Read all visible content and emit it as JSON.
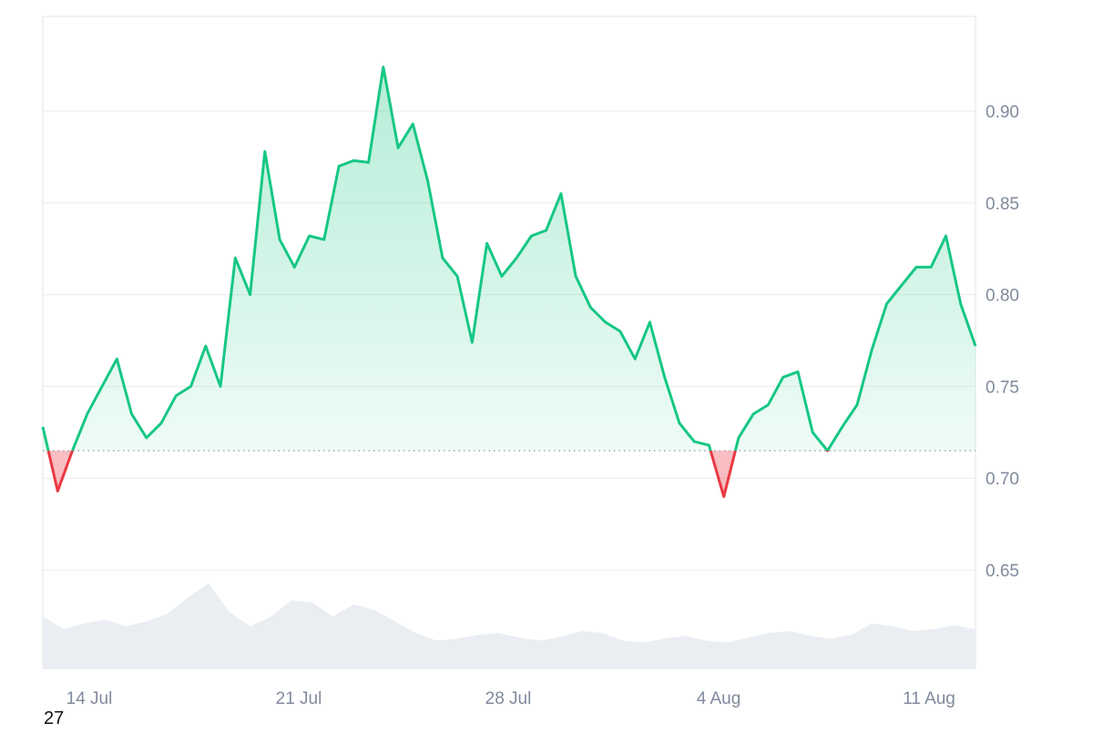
{
  "page_label": "27",
  "chart_data": {
    "type": "line",
    "x_axis": {
      "ticks": [
        "14 Jul",
        "21 Jul",
        "28 Jul",
        "4 Aug",
        "11 Aug"
      ]
    },
    "y_axis": {
      "ticks": [
        "0.65",
        "0.70",
        "0.75",
        "0.80",
        "0.85",
        "0.90"
      ],
      "range": [
        0.6,
        0.95
      ]
    },
    "baseline": 0.715,
    "grid": true,
    "colors": {
      "up": "#16c784",
      "down": "#ea3943",
      "volume": "#eaeef2",
      "grid": "#ececec",
      "axis_text": "#808a9d"
    },
    "series": [
      {
        "x": [
          "12 Jul",
          "12 Jul",
          "13 Jul",
          "13 Jul",
          "14 Jul",
          "14 Jul",
          "15 Jul",
          "15 Jul",
          "16 Jul",
          "16 Jul",
          "17 Jul",
          "17 Jul",
          "18 Jul",
          "18 Jul",
          "19 Jul",
          "19 Jul",
          "20 Jul",
          "20 Jul",
          "21 Jul",
          "21 Jul",
          "22 Jul",
          "22 Jul",
          "23 Jul",
          "23 Jul",
          "24 Jul",
          "24 Jul",
          "25 Jul",
          "25 Jul",
          "26 Jul",
          "26 Jul",
          "27 Jul",
          "27 Jul",
          "28 Jul",
          "28 Jul",
          "29 Jul",
          "29 Jul",
          "30 Jul",
          "30 Jul",
          "31 Jul",
          "31 Jul",
          "1 Aug",
          "1 Aug",
          "2 Aug",
          "2 Aug",
          "3 Aug",
          "3 Aug",
          "4 Aug",
          "4 Aug",
          "5 Aug",
          "5 Aug",
          "6 Aug",
          "6 Aug",
          "7 Aug",
          "7 Aug",
          "8 Aug",
          "8 Aug",
          "9 Aug",
          "9 Aug",
          "10 Aug",
          "10 Aug",
          "11 Aug",
          "11 Aug",
          "12 Aug",
          "12 Aug"
        ],
        "values": [
          0.728,
          0.693,
          0.715,
          0.735,
          0.75,
          0.765,
          0.735,
          0.722,
          0.73,
          0.745,
          0.75,
          0.772,
          0.75,
          0.82,
          0.8,
          0.878,
          0.83,
          0.815,
          0.832,
          0.83,
          0.87,
          0.873,
          0.872,
          0.924,
          0.88,
          0.893,
          0.862,
          0.82,
          0.81,
          0.774,
          0.828,
          0.81,
          0.82,
          0.832,
          0.835,
          0.855,
          0.81,
          0.793,
          0.785,
          0.78,
          0.765,
          0.785,
          0.755,
          0.73,
          0.72,
          0.718,
          0.69,
          0.722,
          0.735,
          0.74,
          0.755,
          0.758,
          0.725,
          0.715,
          0.728,
          0.74,
          0.77,
          0.795,
          0.805,
          0.815,
          0.815,
          0.832,
          0.795,
          0.772
        ]
      }
    ],
    "volume": [
      0.55,
      0.42,
      0.48,
      0.52,
      0.45,
      0.5,
      0.58,
      0.75,
      0.9,
      0.6,
      0.45,
      0.55,
      0.72,
      0.7,
      0.55,
      0.68,
      0.62,
      0.5,
      0.38,
      0.3,
      0.32,
      0.36,
      0.38,
      0.33,
      0.3,
      0.34,
      0.4,
      0.38,
      0.3,
      0.28,
      0.32,
      0.35,
      0.3,
      0.28,
      0.33,
      0.38,
      0.4,
      0.35,
      0.32,
      0.36,
      0.48,
      0.45,
      0.4,
      0.42,
      0.46,
      0.42
    ]
  }
}
